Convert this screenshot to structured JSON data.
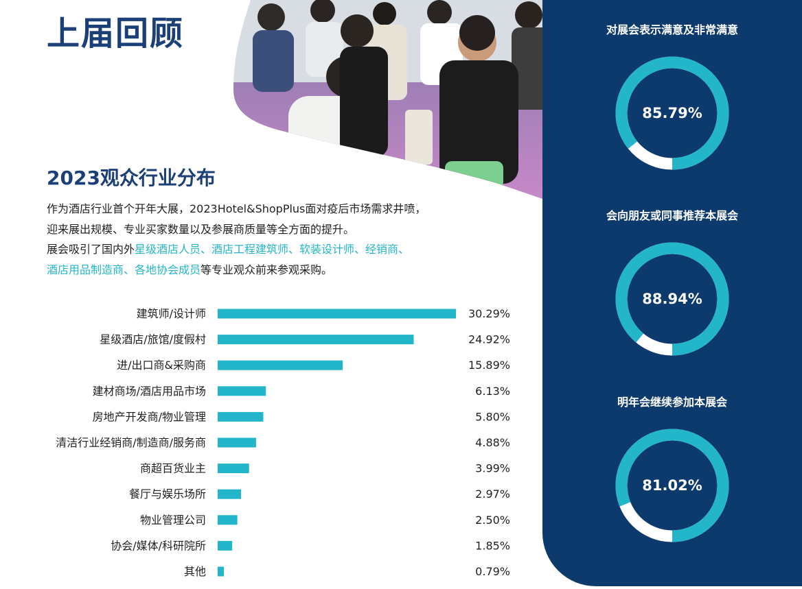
{
  "header": {
    "title": "上届回顾"
  },
  "photo": {
    "description_icon": "crowd-photo"
  },
  "section": {
    "title": "2023观众行业分布",
    "intro": {
      "line1": "作为酒店行业首个开年大展，2023Hotel&ShopPlus面对疫后市场需求井喷，",
      "line2": "迎来展出规模、专业买家数量以及参展商质量等全方面的提升。",
      "line3_prefix": "展会吸引了国内外",
      "line3_highlight": "星级酒店人员、酒店工程建筑师、软装设计师、经销商、",
      "line4_highlight": "酒店用品制造商、各地协会成员",
      "line4_suffix": "等专业观众前来参观采购。"
    }
  },
  "colors": {
    "primary": "#1b3f77",
    "accent": "#23b5c9",
    "panel": "#0d3a6d",
    "ring_rest": "#ffffff"
  },
  "chart_data": [
    {
      "type": "bar",
      "orientation": "horizontal",
      "title": "",
      "categories": [
        "建筑师/设计师",
        "星级酒店/旅馆/度假村",
        "进/出口商&采购商",
        "建材商场/酒店用品市场",
        "房地产开发商/物业管理",
        "清洁行业经销商/制造商/服务商",
        "商超百货业主",
        "餐厅与娱乐场所",
        "物业管理公司",
        "协会/媒体/科研院所",
        "其他"
      ],
      "values": [
        30.29,
        24.92,
        15.89,
        6.13,
        5.8,
        4.88,
        3.99,
        2.97,
        2.5,
        1.85,
        0.79
      ],
      "value_labels": [
        "30.29%",
        "24.92%",
        "15.89%",
        "6.13%",
        "5.80%",
        "4.88%",
        "3.99%",
        "2.97%",
        "2.50%",
        "1.85%",
        "0.79%"
      ],
      "unit": "%",
      "grid": false,
      "legend": "none"
    },
    {
      "type": "pie",
      "style": "donut",
      "title": "对展会表示满意及非常满意",
      "values": [
        85.79,
        14.21
      ],
      "label": "85.79%"
    },
    {
      "type": "pie",
      "style": "donut",
      "title": "会向朋友或同事推荐本展会",
      "values": [
        88.94,
        11.06
      ],
      "label": "88.94%"
    },
    {
      "type": "pie",
      "style": "donut",
      "title": "明年会继续参加本展会",
      "values": [
        81.02,
        18.98
      ],
      "label": "81.02%"
    }
  ]
}
